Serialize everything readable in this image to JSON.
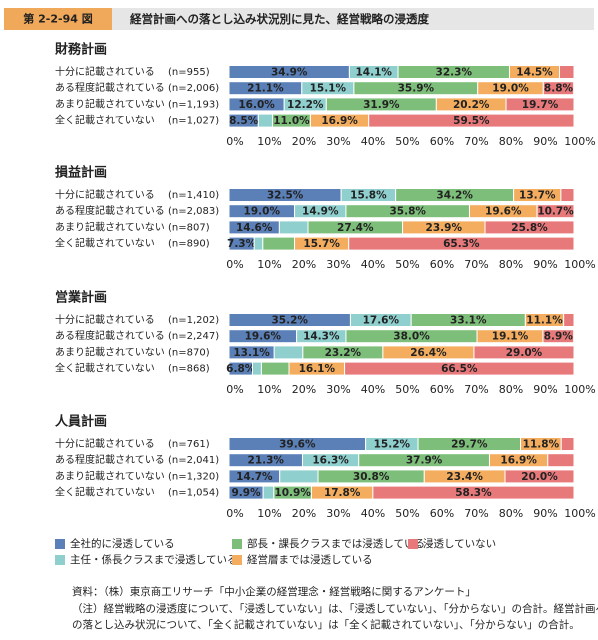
{
  "header": {
    "figure_number": "第 2-2-94 図",
    "title": "経営計画への落とし込み状況別に見た、経営戦略の浸透度"
  },
  "legend": {
    "items": [
      {
        "name": "全社的に浸透している",
        "color": "#5b80b8"
      },
      {
        "name": "主任・係長クラスまで浸透している",
        "color": "#8fd0cf"
      },
      {
        "name": "部長・課長クラスまでは浸透している",
        "color": "#7dbe7a"
      },
      {
        "name": "経営層までは浸透している",
        "color": "#f4ad5f"
      },
      {
        "name": "浸透していない",
        "color": "#e8797b"
      }
    ]
  },
  "chart_data": [
    {
      "type": "bar",
      "orientation": "horizontal",
      "stacked": true,
      "title": "財務計画",
      "categories": [
        "十分に記載されている",
        "ある程度記載されている",
        "あまり記載されていない",
        "全く記載されていない"
      ],
      "n_labels": [
        "(n=955)",
        "(n=2,006)",
        "(n=1,193)",
        "(n=1,027)"
      ],
      "series": [
        {
          "values": [
            34.9,
            21.1,
            16.0,
            8.5
          ],
          "value_labels": [
            "34.9%",
            "21.1%",
            "16.0%",
            "8.5%"
          ]
        },
        {
          "values": [
            14.1,
            15.1,
            12.2,
            4.1
          ],
          "value_labels": [
            "14.1%",
            "15.1%",
            "12.2%",
            null
          ]
        },
        {
          "values": [
            32.3,
            35.9,
            31.9,
            11.0
          ],
          "value_labels": [
            "32.3%",
            "35.9%",
            "31.9%",
            "11.0%"
          ]
        },
        {
          "values": [
            14.5,
            19.0,
            20.2,
            16.9
          ],
          "value_labels": [
            "14.5%",
            "19.0%",
            "20.2%",
            "16.9%"
          ]
        },
        {
          "values": [
            4.2,
            8.8,
            19.7,
            59.5
          ],
          "value_labels": [
            null,
            "8.8%",
            "19.7%",
            "59.5%"
          ]
        }
      ],
      "xlim": [
        0,
        100
      ],
      "xticks": [
        {
          "value": 0,
          "label": "0%"
        },
        {
          "value": 10,
          "label": "10%"
        },
        {
          "value": 20,
          "label": "20%"
        },
        {
          "value": 30,
          "label": "30%"
        },
        {
          "value": 40,
          "label": "40%"
        },
        {
          "value": 50,
          "label": "50%"
        },
        {
          "value": 60,
          "label": "60%"
        },
        {
          "value": 70,
          "label": "70%"
        },
        {
          "value": 80,
          "label": "80%"
        },
        {
          "value": 90,
          "label": "90%"
        },
        {
          "value": 100,
          "label": "100%"
        }
      ]
    },
    {
      "type": "bar",
      "orientation": "horizontal",
      "stacked": true,
      "title": "損益計画",
      "categories": [
        "十分に記載されている",
        "ある程度記載されている",
        "あまり記載されていない",
        "全く記載されていない"
      ],
      "n_labels": [
        "(n=1,410)",
        "(n=2,083)",
        "(n=807)",
        "(n=890)"
      ],
      "series": [
        {
          "values": [
            32.5,
            19.0,
            14.6,
            7.3
          ],
          "value_labels": [
            "32.5%",
            "19.0%",
            "14.6%",
            "7.3%"
          ]
        },
        {
          "values": [
            15.8,
            14.9,
            8.3,
            2.5
          ],
          "value_labels": [
            "15.8%",
            "14.9%",
            null,
            null
          ]
        },
        {
          "values": [
            34.2,
            35.8,
            27.4,
            9.2
          ],
          "value_labels": [
            "34.2%",
            "35.8%",
            "27.4%",
            null
          ]
        },
        {
          "values": [
            13.7,
            19.6,
            23.9,
            15.7
          ],
          "value_labels": [
            "13.7%",
            "19.6%",
            "23.9%",
            "15.7%"
          ]
        },
        {
          "values": [
            3.8,
            10.7,
            25.8,
            65.3
          ],
          "value_labels": [
            null,
            "10.7%",
            "25.8%",
            "65.3%"
          ]
        }
      ],
      "xlim": [
        0,
        100
      ],
      "xticks": [
        {
          "value": 0,
          "label": "0%"
        },
        {
          "value": 10,
          "label": "10%"
        },
        {
          "value": 20,
          "label": "20%"
        },
        {
          "value": 30,
          "label": "30%"
        },
        {
          "value": 40,
          "label": "40%"
        },
        {
          "value": 50,
          "label": "50%"
        },
        {
          "value": 60,
          "label": "60%"
        },
        {
          "value": 70,
          "label": "70%"
        },
        {
          "value": 80,
          "label": "80%"
        },
        {
          "value": 90,
          "label": "90%"
        },
        {
          "value": 100,
          "label": "100%"
        }
      ]
    },
    {
      "type": "bar",
      "orientation": "horizontal",
      "stacked": true,
      "title": "営業計画",
      "categories": [
        "十分に記載されている",
        "ある程度記載されている",
        "あまり記載されていない",
        "全く記載されていない"
      ],
      "n_labels": [
        "(n=1,202)",
        "(n=2,247)",
        "(n=870)",
        "(n=868)"
      ],
      "series": [
        {
          "values": [
            35.2,
            19.6,
            13.1,
            6.8
          ],
          "value_labels": [
            "35.2%",
            "19.6%",
            "13.1%",
            "6.8%"
          ]
        },
        {
          "values": [
            17.6,
            14.3,
            8.3,
            2.6
          ],
          "value_labels": [
            "17.6%",
            "14.3%",
            null,
            null
          ]
        },
        {
          "values": [
            33.1,
            38.0,
            23.2,
            8.0
          ],
          "value_labels": [
            "33.1%",
            "38.0%",
            "23.2%",
            null
          ]
        },
        {
          "values": [
            11.1,
            19.1,
            26.4,
            16.1
          ],
          "value_labels": [
            "11.1%",
            "19.1%",
            "26.4%",
            "16.1%"
          ]
        },
        {
          "values": [
            3.0,
            8.9,
            29.0,
            66.5
          ],
          "value_labels": [
            null,
            "8.9%",
            "29.0%",
            "66.5%"
          ]
        }
      ],
      "xlim": [
        0,
        100
      ],
      "xticks": [
        {
          "value": 0,
          "label": "0%"
        },
        {
          "value": 10,
          "label": "10%"
        },
        {
          "value": 20,
          "label": "20%"
        },
        {
          "value": 30,
          "label": "30%"
        },
        {
          "value": 40,
          "label": "40%"
        },
        {
          "value": 50,
          "label": "50%"
        },
        {
          "value": 60,
          "label": "60%"
        },
        {
          "value": 70,
          "label": "70%"
        },
        {
          "value": 80,
          "label": "80%"
        },
        {
          "value": 90,
          "label": "90%"
        },
        {
          "value": 100,
          "label": "100%"
        }
      ]
    },
    {
      "type": "bar",
      "orientation": "horizontal",
      "stacked": true,
      "title": "人員計画",
      "categories": [
        "十分に記載されている",
        "ある程度記載されている",
        "あまり記載されていない",
        "全く記載されていない"
      ],
      "n_labels": [
        "(n=761)",
        "(n=2,041)",
        "(n=1,320)",
        "(n=1,054)"
      ],
      "series": [
        {
          "values": [
            39.6,
            21.3,
            14.7,
            9.9
          ],
          "value_labels": [
            "39.6%",
            "21.3%",
            "14.7%",
            "9.9%"
          ]
        },
        {
          "values": [
            15.2,
            16.3,
            11.1,
            3.1
          ],
          "value_labels": [
            "15.2%",
            "16.3%",
            null,
            null
          ]
        },
        {
          "values": [
            29.7,
            37.9,
            30.8,
            10.9
          ],
          "value_labels": [
            "29.7%",
            "37.9%",
            "30.8%",
            "10.9%"
          ]
        },
        {
          "values": [
            11.8,
            16.9,
            23.4,
            17.8
          ],
          "value_labels": [
            "11.8%",
            "16.9%",
            "23.4%",
            "17.8%"
          ]
        },
        {
          "values": [
            3.7,
            7.6,
            20.0,
            58.3
          ],
          "value_labels": [
            null,
            null,
            "20.0%",
            "58.3%"
          ]
        }
      ],
      "xlim": [
        0,
        100
      ],
      "xticks": [
        {
          "value": 0,
          "label": "0%"
        },
        {
          "value": 10,
          "label": "10%"
        },
        {
          "value": 20,
          "label": "20%"
        },
        {
          "value": 30,
          "label": "30%"
        },
        {
          "value": 40,
          "label": "40%"
        },
        {
          "value": 50,
          "label": "50%"
        },
        {
          "value": 60,
          "label": "60%"
        },
        {
          "value": 70,
          "label": "70%"
        },
        {
          "value": 80,
          "label": "80%"
        },
        {
          "value": 90,
          "label": "90%"
        },
        {
          "value": 100,
          "label": "100%"
        }
      ]
    }
  ],
  "footer": {
    "source": "資料：（株）東京商工リサーチ「中小企業の経営理念・経営戦略に関するアンケート」",
    "notes": [
      "（注）経営戦略の浸透度について、「浸透していない」は、「浸透していない」、「分からない」の合計。経営計画へ",
      "の落とし込み状況について、「全く記載されていない」は「全く記載されていない」、「分からない」の合計。"
    ]
  }
}
